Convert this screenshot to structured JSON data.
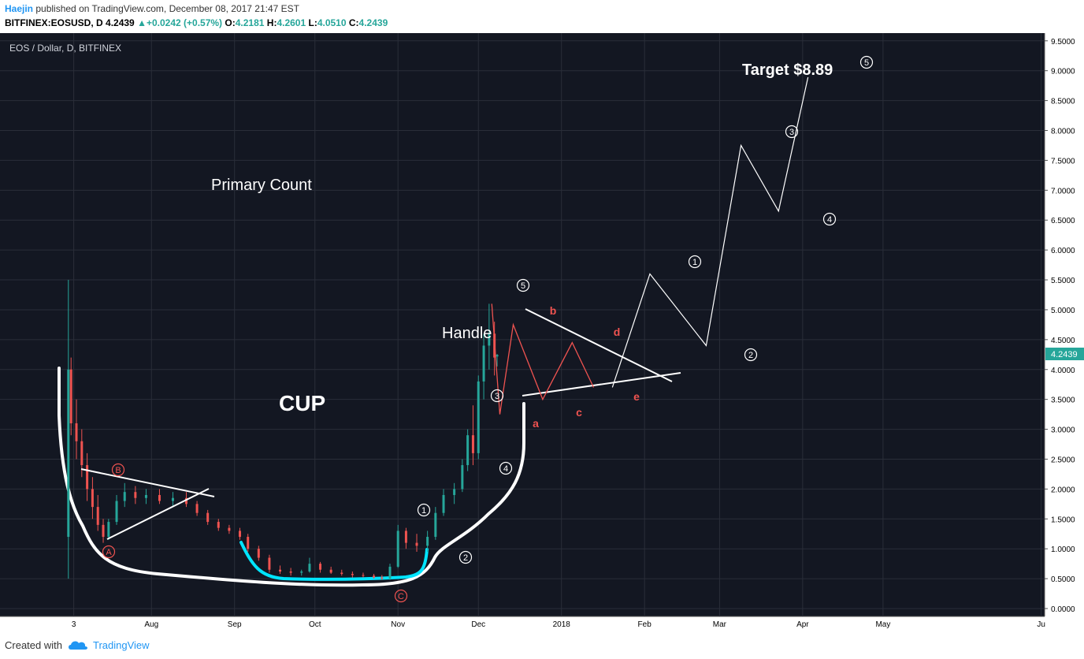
{
  "header": {
    "author": "Haejin",
    "published_text": "published on TradingView.com, December 08, 2017 21:47 EST",
    "symbol": "BITFINEX:EOSUSD, D",
    "last": "4.2439",
    "change": "+0.0242 (+0.57%)",
    "open_label": "O:",
    "open": "4.2181",
    "high_label": "H:",
    "high": "4.2601",
    "low_label": "L:",
    "low": "4.0510",
    "close_label": "C:",
    "close": "4.2439"
  },
  "footer": {
    "created_with": "Created with",
    "brand": "TradingView"
  },
  "chart_data": {
    "type": "candlestick",
    "title": "EOS / Dollar, D, BITFINEX",
    "ylim": [
      0,
      9.55
    ],
    "y_ticks": [
      "9.5000",
      "9.0000",
      "8.5000",
      "8.0000",
      "7.5000",
      "7.0000",
      "6.5000",
      "6.0000",
      "5.5000",
      "5.0000",
      "4.5000",
      "4.0000",
      "3.5000",
      "3.0000",
      "2.5000",
      "2.0000",
      "1.5000",
      "1.0000",
      "0.5000",
      "0.0000"
    ],
    "x_ticks": [
      "3",
      "Aug",
      "Sep",
      "Oct",
      "Nov",
      "Dec",
      "2018",
      "Feb",
      "Mar",
      "Apr",
      "May",
      "Ju"
    ],
    "x_range": [
      "2017-06-29",
      "2018-06-30"
    ],
    "last_price_label": "4.2439",
    "colors": {
      "background": "#131722",
      "up": "#26a69a",
      "down": "#ef5350",
      "grid": "#2a2e39",
      "axis_bg": "#ffffff",
      "price_tag": "#26a69a"
    },
    "candles": [
      {
        "date": "2017-07-01",
        "o": 1.2,
        "h": 5.5,
        "l": 0.5,
        "c": 4.0
      },
      {
        "date": "2017-07-02",
        "o": 4.0,
        "h": 4.2,
        "l": 2.9,
        "c": 3.1
      },
      {
        "date": "2017-07-04",
        "o": 3.1,
        "h": 3.5,
        "l": 2.5,
        "c": 2.8
      },
      {
        "date": "2017-07-06",
        "o": 2.8,
        "h": 3.0,
        "l": 2.2,
        "c": 2.4
      },
      {
        "date": "2017-07-08",
        "o": 2.4,
        "h": 2.6,
        "l": 1.8,
        "c": 2.0
      },
      {
        "date": "2017-07-10",
        "o": 2.0,
        "h": 2.2,
        "l": 1.5,
        "c": 1.7
      },
      {
        "date": "2017-07-12",
        "o": 1.7,
        "h": 1.9,
        "l": 1.3,
        "c": 1.4
      },
      {
        "date": "2017-07-14",
        "o": 1.4,
        "h": 1.5,
        "l": 1.1,
        "c": 1.2
      },
      {
        "date": "2017-07-16",
        "o": 1.2,
        "h": 1.5,
        "l": 1.15,
        "c": 1.45
      },
      {
        "date": "2017-07-19",
        "o": 1.45,
        "h": 1.9,
        "l": 1.4,
        "c": 1.8
      },
      {
        "date": "2017-07-22",
        "o": 1.8,
        "h": 2.1,
        "l": 1.7,
        "c": 1.95
      },
      {
        "date": "2017-07-26",
        "o": 1.95,
        "h": 2.05,
        "l": 1.75,
        "c": 1.85
      },
      {
        "date": "2017-07-30",
        "o": 1.85,
        "h": 2.0,
        "l": 1.75,
        "c": 1.9
      },
      {
        "date": "2017-08-04",
        "o": 1.9,
        "h": 2.0,
        "l": 1.75,
        "c": 1.8
      },
      {
        "date": "2017-08-09",
        "o": 1.8,
        "h": 1.95,
        "l": 1.7,
        "c": 1.85
      },
      {
        "date": "2017-08-14",
        "o": 1.85,
        "h": 1.95,
        "l": 1.7,
        "c": 1.75
      },
      {
        "date": "2017-08-18",
        "o": 1.75,
        "h": 1.8,
        "l": 1.55,
        "c": 1.6
      },
      {
        "date": "2017-08-22",
        "o": 1.6,
        "h": 1.65,
        "l": 1.4,
        "c": 1.45
      },
      {
        "date": "2017-08-26",
        "o": 1.45,
        "h": 1.5,
        "l": 1.3,
        "c": 1.35
      },
      {
        "date": "2017-08-30",
        "o": 1.35,
        "h": 1.4,
        "l": 1.25,
        "c": 1.3
      },
      {
        "date": "2017-09-03",
        "o": 1.3,
        "h": 1.35,
        "l": 1.15,
        "c": 1.2
      },
      {
        "date": "2017-09-06",
        "o": 1.2,
        "h": 1.25,
        "l": 0.95,
        "c": 1.0
      },
      {
        "date": "2017-09-10",
        "o": 1.0,
        "h": 1.05,
        "l": 0.8,
        "c": 0.85
      },
      {
        "date": "2017-09-14",
        "o": 0.85,
        "h": 0.9,
        "l": 0.6,
        "c": 0.65
      },
      {
        "date": "2017-09-18",
        "o": 0.65,
        "h": 0.72,
        "l": 0.58,
        "c": 0.62
      },
      {
        "date": "2017-09-22",
        "o": 0.62,
        "h": 0.68,
        "l": 0.55,
        "c": 0.6
      },
      {
        "date": "2017-09-26",
        "o": 0.6,
        "h": 0.65,
        "l": 0.55,
        "c": 0.62
      },
      {
        "date": "2017-09-29",
        "o": 0.62,
        "h": 0.85,
        "l": 0.6,
        "c": 0.75
      },
      {
        "date": "2017-10-03",
        "o": 0.75,
        "h": 0.78,
        "l": 0.6,
        "c": 0.65
      },
      {
        "date": "2017-10-07",
        "o": 0.65,
        "h": 0.7,
        "l": 0.58,
        "c": 0.6
      },
      {
        "date": "2017-10-11",
        "o": 0.6,
        "h": 0.65,
        "l": 0.55,
        "c": 0.58
      },
      {
        "date": "2017-10-15",
        "o": 0.58,
        "h": 0.62,
        "l": 0.52,
        "c": 0.56
      },
      {
        "date": "2017-10-19",
        "o": 0.56,
        "h": 0.6,
        "l": 0.52,
        "c": 0.55
      },
      {
        "date": "2017-10-23",
        "o": 0.55,
        "h": 0.58,
        "l": 0.5,
        "c": 0.52
      },
      {
        "date": "2017-10-26",
        "o": 0.52,
        "h": 0.56,
        "l": 0.48,
        "c": 0.5
      },
      {
        "date": "2017-10-29",
        "o": 0.5,
        "h": 0.75,
        "l": 0.48,
        "c": 0.7
      },
      {
        "date": "2017-11-01",
        "o": 0.7,
        "h": 1.4,
        "l": 0.68,
        "c": 1.3
      },
      {
        "date": "2017-11-04",
        "o": 1.3,
        "h": 1.35,
        "l": 1.0,
        "c": 1.1
      },
      {
        "date": "2017-11-08",
        "o": 1.1,
        "h": 1.25,
        "l": 0.95,
        "c": 1.05
      },
      {
        "date": "2017-11-12",
        "o": 1.05,
        "h": 1.3,
        "l": 0.95,
        "c": 1.2
      },
      {
        "date": "2017-11-15",
        "o": 1.2,
        "h": 1.7,
        "l": 1.15,
        "c": 1.6
      },
      {
        "date": "2017-11-18",
        "o": 1.6,
        "h": 2.0,
        "l": 1.55,
        "c": 1.9
      },
      {
        "date": "2017-11-22",
        "o": 1.9,
        "h": 2.1,
        "l": 1.75,
        "c": 2.0
      },
      {
        "date": "2017-11-25",
        "o": 2.0,
        "h": 2.5,
        "l": 1.95,
        "c": 2.4
      },
      {
        "date": "2017-11-27",
        "o": 2.4,
        "h": 3.0,
        "l": 2.3,
        "c": 2.9
      },
      {
        "date": "2017-11-29",
        "o": 2.9,
        "h": 3.4,
        "l": 2.4,
        "c": 2.6
      },
      {
        "date": "2017-12-01",
        "o": 2.6,
        "h": 3.9,
        "l": 2.5,
        "c": 3.8
      },
      {
        "date": "2017-12-03",
        "o": 3.8,
        "h": 4.6,
        "l": 3.5,
        "c": 4.4
      },
      {
        "date": "2017-12-05",
        "o": 4.4,
        "h": 5.1,
        "l": 4.0,
        "c": 4.6
      },
      {
        "date": "2017-12-07",
        "o": 4.6,
        "h": 4.8,
        "l": 3.9,
        "c": 4.2
      },
      {
        "date": "2017-12-08",
        "o": 4.2181,
        "h": 4.2601,
        "l": 4.051,
        "c": 4.2439
      }
    ],
    "annotations": {
      "title_texts": {
        "primary_count": "Primary Count",
        "cup": "CUP",
        "handle": "Handle",
        "target": "Target $8.89"
      },
      "abc_labels": [
        "A",
        "B",
        "C"
      ],
      "impulse_labels": [
        "1",
        "2",
        "3",
        "4",
        "5"
      ],
      "triangle_labels": [
        "a",
        "b",
        "c",
        "d",
        "e"
      ],
      "projection_labels": [
        "1",
        "2",
        "3",
        "4",
        "5"
      ],
      "projection_path": [
        {
          "date": "2018-01-20",
          "y": 3.7
        },
        {
          "date": "2018-02-03",
          "y": 5.6
        },
        {
          "date": "2018-02-24",
          "y": 4.4
        },
        {
          "date": "2018-03-09",
          "y": 7.75
        },
        {
          "date": "2018-03-23",
          "y": 6.65
        },
        {
          "date": "2018-04-03",
          "y": 8.89
        }
      ],
      "red_zigzag": [
        {
          "date": "2017-12-06",
          "y": 5.1
        },
        {
          "date": "2017-12-09",
          "y": 3.25
        },
        {
          "date": "2017-12-14",
          "y": 4.75
        },
        {
          "date": "2017-12-25",
          "y": 3.5
        },
        {
          "date": "2018-01-05",
          "y": 4.45
        },
        {
          "date": "2018-01-13",
          "y": 3.7
        }
      ]
    }
  }
}
